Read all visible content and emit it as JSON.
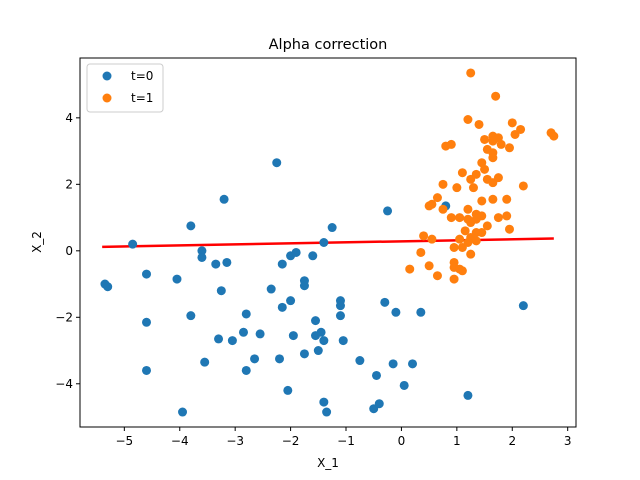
{
  "chart_data": {
    "type": "scatter",
    "title": "Alpha correction",
    "xlabel": "X_1",
    "ylabel": "X_2",
    "xlim": [
      -5.8,
      3.15
    ],
    "ylim": [
      -5.3,
      5.8
    ],
    "xticks": [
      -5,
      -4,
      -3,
      -2,
      -1,
      0,
      1,
      2,
      3
    ],
    "xtick_labels": [
      "−5",
      "−4",
      "−3",
      "−2",
      "−1",
      "0",
      "1",
      "2",
      "3"
    ],
    "yticks": [
      -4,
      -2,
      0,
      2,
      4
    ],
    "ytick_labels": [
      "−4",
      "−2",
      "0",
      "2",
      "4"
    ],
    "legend_position": "top-left",
    "grid": false,
    "series": [
      {
        "name": "t=0",
        "color": "#1f77b4",
        "points": [
          [
            -5.35,
            -1.0
          ],
          [
            -5.3,
            -1.08
          ],
          [
            -4.85,
            0.2
          ],
          [
            -4.6,
            -0.7
          ],
          [
            -4.6,
            -2.15
          ],
          [
            -4.6,
            -3.6
          ],
          [
            -4.05,
            -0.85
          ],
          [
            -3.95,
            -4.85
          ],
          [
            -3.8,
            0.75
          ],
          [
            -3.8,
            -1.95
          ],
          [
            -3.6,
            0.0
          ],
          [
            -3.6,
            -0.2
          ],
          [
            -3.55,
            -3.35
          ],
          [
            -3.35,
            -0.4
          ],
          [
            -3.3,
            -2.65
          ],
          [
            -3.25,
            -1.2
          ],
          [
            -3.2,
            1.55
          ],
          [
            -3.15,
            -0.35
          ],
          [
            -3.05,
            -2.7
          ],
          [
            -2.85,
            -2.45
          ],
          [
            -2.8,
            -1.9
          ],
          [
            -2.8,
            -3.6
          ],
          [
            -2.65,
            -3.25
          ],
          [
            -2.55,
            -2.5
          ],
          [
            -2.35,
            -1.15
          ],
          [
            -2.25,
            2.65
          ],
          [
            -2.2,
            -3.25
          ],
          [
            -2.15,
            -1.7
          ],
          [
            -2.15,
            -0.4
          ],
          [
            -2.05,
            -4.2
          ],
          [
            -2.0,
            -0.15
          ],
          [
            -2.0,
            -1.5
          ],
          [
            -1.95,
            -2.55
          ],
          [
            -1.9,
            -0.05
          ],
          [
            -1.75,
            -0.9
          ],
          [
            -1.75,
            -1.05
          ],
          [
            -1.75,
            -3.1
          ],
          [
            -1.6,
            -0.15
          ],
          [
            -1.55,
            -2.1
          ],
          [
            -1.55,
            -2.55
          ],
          [
            -1.5,
            -3.0
          ],
          [
            -1.45,
            -2.45
          ],
          [
            -1.4,
            -2.7
          ],
          [
            -1.4,
            0.25
          ],
          [
            -1.4,
            -4.55
          ],
          [
            -1.35,
            -4.85
          ],
          [
            -1.25,
            0.7
          ],
          [
            -1.1,
            -1.5
          ],
          [
            -1.1,
            -1.65
          ],
          [
            -1.1,
            -1.95
          ],
          [
            -1.05,
            -2.7
          ],
          [
            -0.75,
            -3.3
          ],
          [
            -0.5,
            -4.75
          ],
          [
            -0.45,
            -3.75
          ],
          [
            -0.4,
            -4.6
          ],
          [
            -0.3,
            -1.55
          ],
          [
            -0.25,
            1.2
          ],
          [
            -0.15,
            -3.4
          ],
          [
            -0.1,
            -1.85
          ],
          [
            0.05,
            -4.05
          ],
          [
            0.2,
            -3.4
          ],
          [
            0.35,
            -1.85
          ],
          [
            0.8,
            1.35
          ],
          [
            1.2,
            -4.35
          ],
          [
            2.2,
            -1.65
          ]
        ]
      },
      {
        "name": "t=1",
        "color": "#ff7f0e",
        "points": [
          [
            1.25,
            5.35
          ],
          [
            1.7,
            4.65
          ],
          [
            1.2,
            3.95
          ],
          [
            1.4,
            3.8
          ],
          [
            2.0,
            3.85
          ],
          [
            2.05,
            3.5
          ],
          [
            2.15,
            3.65
          ],
          [
            2.7,
            3.55
          ],
          [
            2.75,
            3.45
          ],
          [
            1.65,
            3.45
          ],
          [
            1.75,
            3.4
          ],
          [
            1.8,
            3.2
          ],
          [
            1.5,
            3.35
          ],
          [
            1.65,
            3.3
          ],
          [
            1.95,
            3.1
          ],
          [
            1.55,
            3.05
          ],
          [
            1.65,
            2.95
          ],
          [
            1.65,
            2.8
          ],
          [
            1.45,
            2.65
          ],
          [
            1.5,
            2.45
          ],
          [
            0.8,
            3.15
          ],
          [
            0.9,
            3.2
          ],
          [
            1.1,
            2.35
          ],
          [
            1.35,
            2.3
          ],
          [
            1.55,
            2.15
          ],
          [
            1.65,
            2.05
          ],
          [
            1.75,
            2.2
          ],
          [
            1.25,
            2.15
          ],
          [
            1.3,
            1.9
          ],
          [
            0.75,
            2.0
          ],
          [
            1.0,
            1.9
          ],
          [
            2.2,
            1.95
          ],
          [
            1.9,
            1.55
          ],
          [
            1.45,
            1.5
          ],
          [
            1.65,
            1.55
          ],
          [
            0.65,
            1.6
          ],
          [
            0.55,
            1.4
          ],
          [
            0.5,
            1.35
          ],
          [
            0.75,
            1.25
          ],
          [
            1.2,
            1.25
          ],
          [
            1.35,
            1.1
          ],
          [
            1.35,
            0.95
          ],
          [
            1.9,
            1.05
          ],
          [
            1.75,
            1.0
          ],
          [
            1.45,
            1.05
          ],
          [
            0.9,
            1.0
          ],
          [
            1.05,
            1.0
          ],
          [
            1.2,
            0.95
          ],
          [
            1.25,
            0.85
          ],
          [
            1.55,
            0.75
          ],
          [
            1.15,
            0.6
          ],
          [
            1.35,
            0.55
          ],
          [
            1.45,
            0.55
          ],
          [
            1.25,
            0.4
          ],
          [
            1.35,
            0.3
          ],
          [
            1.1,
            0.1
          ],
          [
            1.95,
            0.65
          ],
          [
            1.2,
            0.25
          ],
          [
            0.4,
            0.45
          ],
          [
            0.55,
            0.35
          ],
          [
            1.05,
            0.35
          ],
          [
            0.95,
            0.1
          ],
          [
            0.35,
            -0.05
          ],
          [
            1.25,
            -0.1
          ],
          [
            0.95,
            -0.35
          ],
          [
            0.5,
            -0.45
          ],
          [
            0.95,
            -0.5
          ],
          [
            1.05,
            -0.55
          ],
          [
            1.1,
            -0.6
          ],
          [
            0.15,
            -0.55
          ],
          [
            0.65,
            -0.75
          ],
          [
            0.95,
            -0.85
          ]
        ]
      }
    ],
    "line": {
      "color": "#ff0000",
      "x": [
        -5.4,
        2.75
      ],
      "y": [
        0.12,
        0.37
      ]
    }
  }
}
